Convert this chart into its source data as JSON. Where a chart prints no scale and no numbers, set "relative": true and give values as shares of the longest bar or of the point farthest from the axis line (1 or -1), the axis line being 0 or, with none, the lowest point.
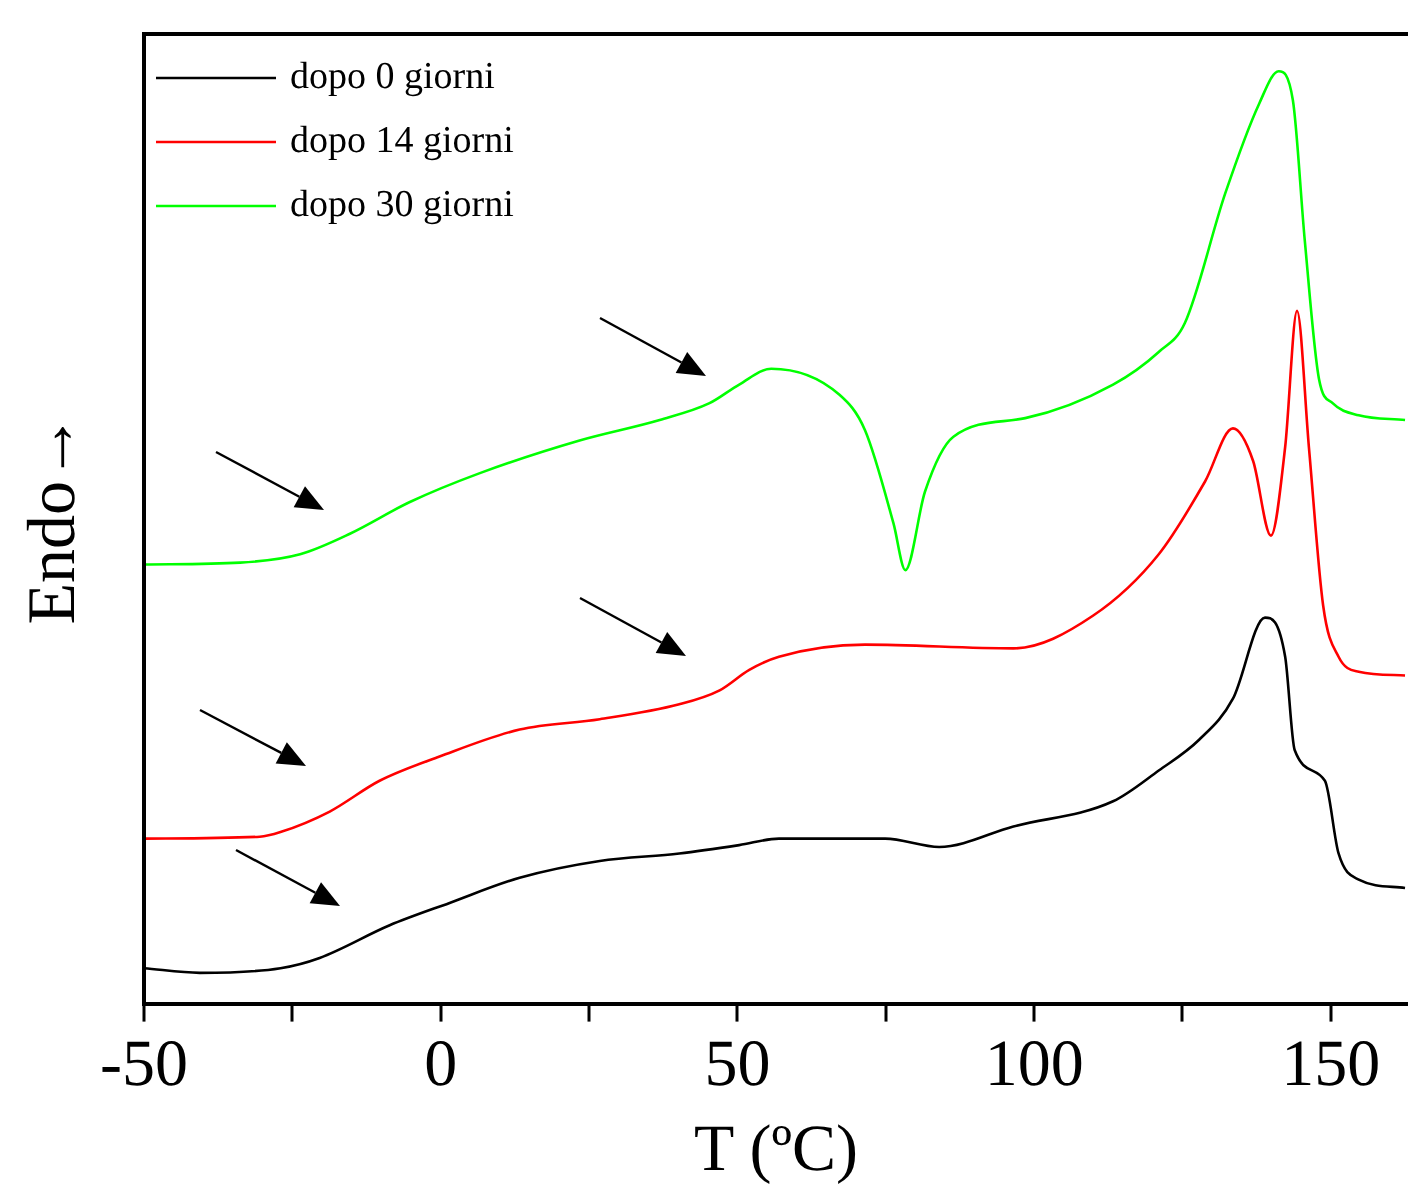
{
  "chart_data": {
    "type": "line",
    "xlabel": "T (ºC)",
    "ylabel": "Endo→",
    "relative": true,
    "legend": "top left",
    "xlim": [
      -50,
      163
    ],
    "xticks": [
      -50,
      {
        "value": -25,
        "label": null
      },
      0,
      {
        "value": 25,
        "label": null
      },
      50,
      {
        "value": 75,
        "label": null
      },
      100,
      {
        "value": 125,
        "label": null
      },
      150
    ],
    "series": [
      {
        "name": "dopo 0 giorni",
        "color": "#000000",
        "x": [
          -50,
          -40.6,
          -27,
          -20.4,
          -8.6,
          1.5,
          13.3,
          26.8,
          40.2,
          50.3,
          57,
          74.9,
          84,
          96.5,
          113.3,
          121,
          127.8,
          133.5,
          138.9,
          142.3,
          143.9,
          149,
          151.3,
          154.7,
          162.5
        ],
        "values": [
          0.038,
          0.033,
          0.038,
          0.049,
          0.084,
          0.108,
          0.135,
          0.153,
          0.161,
          0.17,
          0.177,
          0.177,
          0.168,
          0.19,
          0.217,
          0.25,
          0.283,
          0.327,
          0.414,
          0.372,
          0.272,
          0.239,
          0.161,
          0.133,
          0.124
        ]
      },
      {
        "name": "dopo 14 giorni",
        "color": "#ff0000",
        "x": [
          -50,
          -30.5,
          -27,
          -18.7,
          -10.3,
          -0.2,
          13.3,
          26.8,
          40.2,
          47,
          52,
          57,
          71.5,
          96.5,
          109.9,
          121,
          128.8,
          133.5,
          136.9,
          139.9,
          142.3,
          144.3,
          146.3,
          148.7,
          151.3,
          154.7,
          162.5
        ],
        "values": [
          0.177,
          0.179,
          0.184,
          0.206,
          0.239,
          0.265,
          0.294,
          0.305,
          0.321,
          0.336,
          0.358,
          0.372,
          0.385,
          0.381,
          0.416,
          0.482,
          0.56,
          0.617,
          0.582,
          0.502,
          0.597,
          0.743,
          0.597,
          0.427,
          0.372,
          0.356,
          0.352
        ]
      },
      {
        "name": "dopo 30 giorni",
        "color": "#00ff00",
        "x": [
          -50,
          -33.8,
          -23.7,
          -15.3,
          -5.2,
          6.6,
          23.4,
          36.9,
          45.3,
          50.3,
          55.7,
          67.2,
          71.5,
          76.3,
          78.3,
          81.6,
          86.4,
          98.5,
          113.3,
          121,
          125.4,
          132.2,
          137.9,
          141.2,
          143.6,
          145.6,
          148,
          150.3,
          154.7,
          162.5
        ],
        "values": [
          0.471,
          0.473,
          0.482,
          0.504,
          0.538,
          0.569,
          0.604,
          0.626,
          0.644,
          0.664,
          0.681,
          0.653,
          0.615,
          0.515,
          0.465,
          0.549,
          0.608,
          0.628,
          0.664,
          0.699,
          0.73,
          0.869,
          0.965,
          1,
          0.969,
          0.819,
          0.67,
          0.644,
          0.631,
          0.626
        ]
      }
    ]
  }
}
